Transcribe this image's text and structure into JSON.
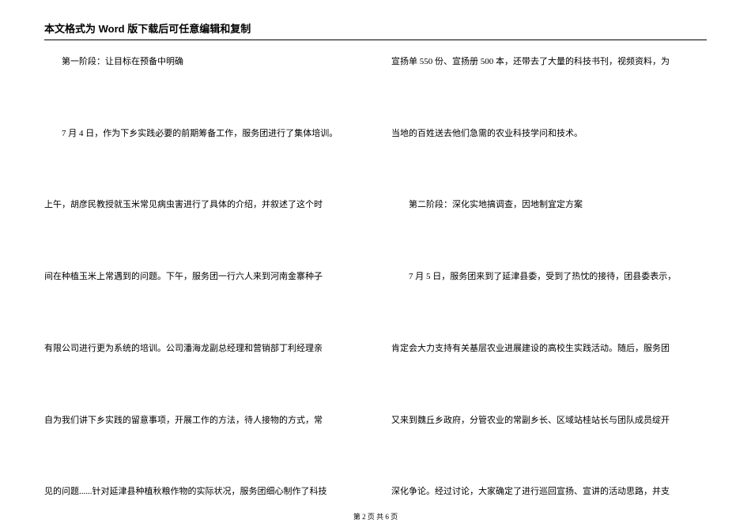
{
  "header": {
    "title": "本文格式为 Word 版下载后可任意编辑和复制"
  },
  "leftColumn": {
    "lines": [
      {
        "text": "第一阶段：让目标在预备中明确",
        "indent": true
      },
      {
        "text": "7 月 4 日，作为下乡实践必要的前期筹备工作，服务团进行了集体培训。",
        "indent": true
      },
      {
        "text": "上午，胡彦民教授就玉米常见病虫害进行了具体的介绍，并叙述了这个时",
        "indent": false
      },
      {
        "text": "间在种植玉米上常遇到的问题。下午，服务团一行六人来到河南金寨种子",
        "indent": false
      },
      {
        "text": "有限公司进行更为系统的培训。公司潘海龙副总经理和营销部丁利经理亲",
        "indent": false
      },
      {
        "text": "自为我们讲下乡实践的留意事项，开展工作的方法，待人接物的方式，常",
        "indent": false
      },
      {
        "text": "见的问题......针对延津县种植秋粮作物的实际状况，服务团细心制作了科技",
        "indent": false
      }
    ]
  },
  "rightColumn": {
    "lines": [
      {
        "text": "宣扬单 550 份、宣扬册 500 本，还带去了大量的科技书刊，视频资料，为",
        "indent": false
      },
      {
        "text": "当地的百姓送去他们急需的农业科技学问和技术。",
        "indent": false
      },
      {
        "text": "第二阶段：深化实地搞调查，因地制宜定方案",
        "indent": true
      },
      {
        "text": "7 月 5 日，服务团来到了延津县委，受到了热忱的接待，团县委表示，",
        "indent": true
      },
      {
        "text": "肯定会大力支持有关基层农业进展建设的高校生实践活动。随后，服务团",
        "indent": false
      },
      {
        "text": "又来到魏丘乡政府，分管农业的常副乡长、区域站桂站长与团队成员绽开",
        "indent": false
      },
      {
        "text": "深化争论。经过讨论，大家确定了进行巡回宣扬、宣讲的活动思路，并支",
        "indent": false
      }
    ]
  },
  "footer": {
    "text": "第 2 页 共 6 页"
  }
}
